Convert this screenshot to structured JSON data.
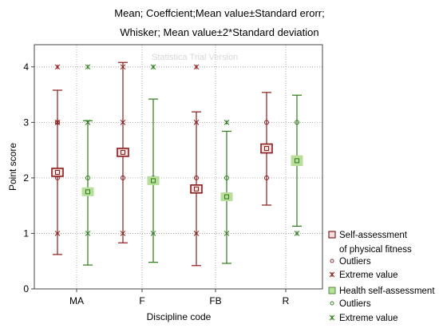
{
  "chart_data": {
    "type": "box",
    "title_line1": "Mean; Coeffcient;Mean value±Standard erorr;",
    "title_line2": "Whisker; Mean value±2*Standard deviation",
    "xlabel": "Discipline code",
    "ylabel": "Point score",
    "categories": [
      "MA",
      "F",
      "FB",
      "R"
    ],
    "ylim": [
      0,
      4.4
    ],
    "yticks": [
      "0",
      "1",
      "2",
      "3",
      "4"
    ],
    "series": [
      {
        "name": "Self-assessment of physical fitness",
        "color": "#8b1a1a",
        "box_fill": "#f1e2e2",
        "mean": [
          2.1,
          2.46,
          1.8,
          2.53
        ],
        "se_low": [
          2.05,
          2.39,
          1.75,
          2.45
        ],
        "se_high": [
          2.16,
          2.53,
          1.86,
          2.61
        ],
        "whisker_low": [
          0.62,
          0.83,
          0.42,
          1.51
        ],
        "whisker_high": [
          3.58,
          4.08,
          3.19,
          3.54
        ],
        "outliers": [
          [
            2.0,
            3.0
          ],
          [
            2.0
          ],
          [
            2.0
          ],
          [
            2.0,
            3.0
          ]
        ],
        "extremes": [
          [
            1.0,
            3.0,
            4.0
          ],
          [
            1.0,
            3.0,
            4.0
          ],
          [
            1.0,
            3.0,
            4.0
          ],
          []
        ]
      },
      {
        "name": "Health self-assessment",
        "color": "#2e7d1a",
        "box_fill": "#b9dd9a",
        "mean": [
          1.75,
          1.95,
          1.66,
          2.31
        ],
        "se_low": [
          1.7,
          1.88,
          1.61,
          2.22
        ],
        "se_high": [
          1.8,
          2.02,
          1.71,
          2.4
        ],
        "whisker_low": [
          0.43,
          0.48,
          0.46,
          1.13
        ],
        "whisker_high": [
          3.03,
          3.42,
          2.84,
          3.49
        ],
        "outliers": [
          [
            2.0
          ],
          [
            2.0
          ],
          [
            2.0
          ],
          [
            3.0
          ]
        ],
        "extremes": [
          [
            1.0,
            3.0,
            4.0
          ],
          [
            1.0,
            4.0
          ],
          [
            1.0,
            3.0
          ],
          [
            1.0
          ]
        ]
      }
    ],
    "legend": {
      "placement": "bottom-right",
      "items": [
        {
          "label": "Self-assessment",
          "symbol": "box",
          "series": 0
        },
        {
          "label": "of physical fitness",
          "symbol": "none"
        },
        {
          "label": "Outliers",
          "symbol": "circle",
          "series": 0
        },
        {
          "label": "Extreme value",
          "symbol": "star",
          "series": 0
        },
        {
          "label": "Health self-assessment",
          "symbol": "box",
          "series": 1
        },
        {
          "label": "Outliers",
          "symbol": "circle",
          "series": 1
        },
        {
          "label": "Extreme value",
          "symbol": "star",
          "series": 1
        }
      ]
    },
    "grid": "dotted",
    "watermark": "Statistica Trial Version"
  }
}
